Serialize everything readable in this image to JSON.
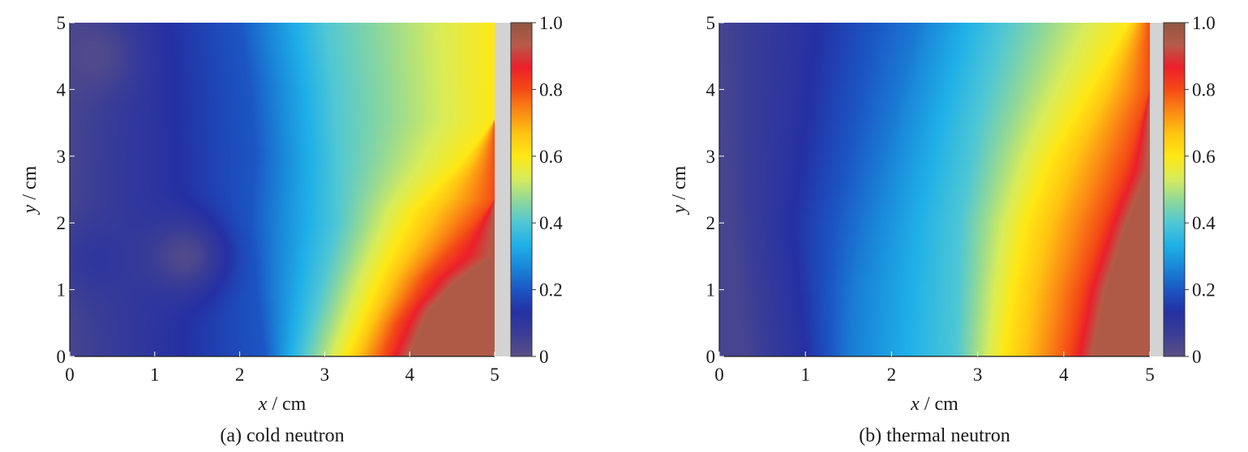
{
  "colors": {
    "colormap": [
      "#5b4f86",
      "#3a3d96",
      "#2530a3",
      "#1b56c4",
      "#1a86d8",
      "#1fb0e8",
      "#4fc7d5",
      "#8fd89a",
      "#d8ec5a",
      "#ffe814",
      "#ffc412",
      "#fb8a14",
      "#f44a16",
      "#ec1f2b",
      "#b85a48",
      "#8f5843"
    ],
    "axis": "#1a1a1a",
    "gap": "#d3d3d3"
  },
  "chart_data": [
    {
      "type": "heatmap",
      "title": "",
      "caption": "(a) cold neutron",
      "xlabel_var": "x",
      "xlabel_unit": " / cm",
      "ylabel_var": "y",
      "ylabel_unit": " / cm",
      "xlim": [
        0,
        5
      ],
      "ylim": [
        0,
        5
      ],
      "xticks": [
        "0",
        "1",
        "2",
        "3",
        "4",
        "5"
      ],
      "yticks": [
        "0",
        "1",
        "2",
        "3",
        "4",
        "5"
      ],
      "colorbar": {
        "range": [
          0,
          1.0
        ],
        "ticks": [
          "0",
          "0.2",
          "0.4",
          "0.6",
          "0.8",
          "1.0"
        ]
      },
      "isolines": [
        {
          "level": 0.2,
          "points": [
            [
              2.0,
              5.0
            ],
            [
              2.12,
              4.0
            ],
            [
              2.18,
              3.0
            ],
            [
              2.12,
              2.0
            ],
            [
              2.2,
              1.0
            ],
            [
              2.3,
              0.0
            ]
          ]
        },
        {
          "level": 0.4,
          "points": [
            [
              3.0,
              5.0
            ],
            [
              3.1,
              4.0
            ],
            [
              3.15,
              3.0
            ],
            [
              3.15,
              2.0
            ],
            [
              2.95,
              1.0
            ],
            [
              2.75,
              0.0
            ]
          ]
        },
        {
          "level": 0.6,
          "points": [
            [
              5.0,
              3.55
            ],
            [
              4.6,
              2.9
            ],
            [
              4.05,
              2.2
            ],
            [
              3.65,
              1.2
            ],
            [
              3.25,
              0.0
            ]
          ]
        },
        {
          "level": 0.8,
          "points": [
            [
              5.0,
              2.35
            ],
            [
              4.6,
              1.75
            ],
            [
              4.2,
              1.2
            ],
            [
              3.85,
              0.5
            ],
            [
              3.7,
              0.0
            ]
          ]
        },
        {
          "level": 0.95,
          "points": [
            [
              5.0,
              1.5
            ],
            [
              4.6,
              1.15
            ],
            [
              4.25,
              0.7
            ],
            [
              4.0,
              0.0
            ]
          ]
        }
      ],
      "blobs": [
        {
          "x": 0.35,
          "y": 1.45,
          "value": 0.1
        },
        {
          "x": 1.35,
          "y": 1.5,
          "value": 0.02
        },
        {
          "x": 0.3,
          "y": 4.5,
          "value": 0.02
        }
      ]
    },
    {
      "type": "heatmap",
      "title": "",
      "caption": "(b) thermal neutron",
      "xlabel_var": "x",
      "xlabel_unit": " / cm",
      "ylabel_var": "y",
      "ylabel_unit": " / cm",
      "xlim": [
        0,
        5
      ],
      "ylim": [
        0,
        5
      ],
      "xticks": [
        "0",
        "1",
        "2",
        "3",
        "4",
        "5"
      ],
      "yticks": [
        "0",
        "1",
        "2",
        "3",
        "4",
        "5"
      ],
      "colorbar": {
        "range": [
          0,
          1.0
        ],
        "ticks": [
          "0",
          "0.2",
          "0.4",
          "0.6",
          "0.8",
          "1.0"
        ]
      },
      "isolines": [
        {
          "level": 0.04,
          "points": [
            [
              0.0,
              5.0
            ],
            [
              0.1,
              2.5
            ],
            [
              0.3,
              0.0
            ]
          ]
        },
        {
          "level": 0.12,
          "points": [
            [
              1.0,
              5.0
            ],
            [
              0.85,
              3.0
            ],
            [
              0.75,
              2.0
            ],
            [
              0.95,
              0.0
            ]
          ]
        },
        {
          "level": 0.25,
          "points": [
            [
              2.3,
              5.0
            ],
            [
              2.0,
              3.5
            ],
            [
              1.7,
              2.0
            ],
            [
              1.55,
              1.0
            ],
            [
              1.5,
              0.0
            ]
          ]
        },
        {
          "level": 0.4,
          "points": [
            [
              3.3,
              5.0
            ],
            [
              3.0,
              3.5
            ],
            [
              2.8,
              2.0
            ],
            [
              2.75,
              0.0
            ]
          ]
        },
        {
          "level": 0.6,
          "points": [
            [
              4.75,
              5.0
            ],
            [
              4.3,
              4.0
            ],
            [
              3.85,
              3.0
            ],
            [
              3.55,
              2.0
            ],
            [
              3.4,
              1.0
            ],
            [
              3.3,
              0.0
            ]
          ]
        },
        {
          "level": 0.8,
          "points": [
            [
              5.0,
              4.0
            ],
            [
              4.75,
              3.0
            ],
            [
              4.45,
              2.0
            ],
            [
              4.2,
              1.0
            ],
            [
              4.05,
              0.0
            ]
          ]
        },
        {
          "level": 0.95,
          "points": [
            [
              5.0,
              2.8
            ],
            [
              4.75,
              2.0
            ],
            [
              4.5,
              1.0
            ],
            [
              4.35,
              0.0
            ]
          ]
        }
      ],
      "blobs": []
    }
  ]
}
